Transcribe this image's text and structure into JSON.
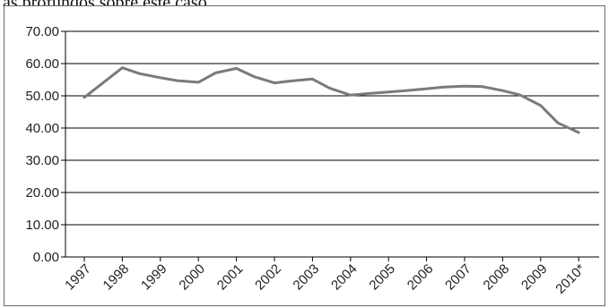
{
  "caption": "as profundos sobre este caso.",
  "chart_data": {
    "type": "line",
    "title": "",
    "xlabel": "",
    "ylabel": "",
    "categories": [
      "1997",
      "1998",
      "1999",
      "2000",
      "2001",
      "2002",
      "2003",
      "2004",
      "2005",
      "2006",
      "2007",
      "2008",
      "2009",
      "2010*"
    ],
    "x": [
      0,
      1,
      1.45,
      2,
      2.45,
      3,
      3.45,
      4,
      4.45,
      5,
      5.45,
      6,
      6.45,
      7,
      7.45,
      8,
      8.45,
      9,
      9.45,
      10,
      10.45,
      11,
      11.45,
      12,
      12.45,
      13
    ],
    "series": [
      {
        "values": [
          49.5,
          58.7,
          56.9,
          55.6,
          54.7,
          54.2,
          57.1,
          58.5,
          56.0,
          54.0,
          54.6,
          55.2,
          52.4,
          50.2,
          50.7,
          51.2,
          51.6,
          52.2,
          52.7,
          53.0,
          52.9,
          51.6,
          50.3,
          47.0,
          41.6,
          38.6
        ],
        "color": "#7a7a7a"
      }
    ],
    "ylim": [
      0,
      70
    ],
    "yticks": [
      "0.00",
      "10.00",
      "20.00",
      "30.00",
      "40.00",
      "50.00",
      "60.00",
      "70.00"
    ],
    "grid": true,
    "gridlines": "horizontal",
    "legend": "none"
  }
}
